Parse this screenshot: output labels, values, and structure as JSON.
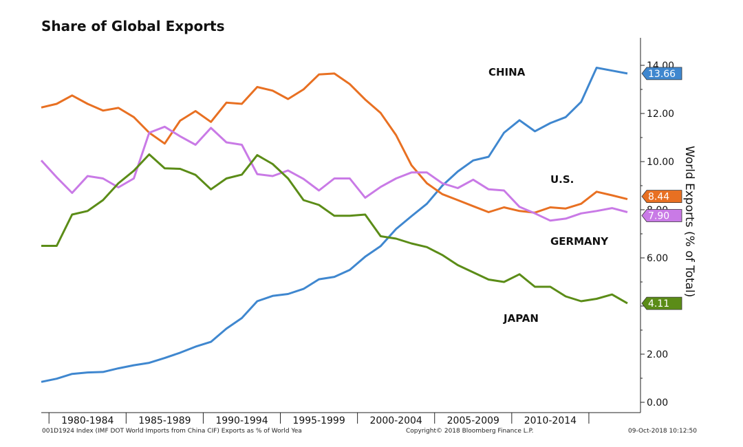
{
  "chart_data": {
    "type": "line",
    "title": "Share of Global Exports",
    "ylabel": "World Exports (% of Total)",
    "ylim": [
      0,
      15
    ],
    "yticks": [
      "0.00",
      "2.00",
      "4.00",
      "6.00",
      "8.00",
      "10.00",
      "12.00",
      "14.00"
    ],
    "ytick_values": [
      0,
      2,
      4,
      6,
      8,
      10,
      12,
      14
    ],
    "xlim": [
      1979,
      2018
    ],
    "x_category_labels": [
      "1980-1984",
      "1985-1989",
      "1990-1994",
      "1995-1999",
      "2000-2004",
      "2005-2009",
      "2010-2014"
    ],
    "x": [
      1979,
      1980,
      1981,
      1982,
      1983,
      1984,
      1985,
      1986,
      1987,
      1988,
      1989,
      1990,
      1991,
      1992,
      1993,
      1994,
      1995,
      1996,
      1997,
      1998,
      1999,
      2000,
      2001,
      2002,
      2003,
      2004,
      2005,
      2006,
      2007,
      2008,
      2009,
      2010,
      2011,
      2012,
      2013,
      2014,
      2015,
      2016,
      2017
    ],
    "series": [
      {
        "name": "CHINA",
        "color": "#3f87cf",
        "last_value_label": "13.66",
        "values": [
          0.85,
          0.98,
          1.18,
          1.24,
          1.26,
          1.41,
          1.54,
          1.64,
          1.84,
          2.06,
          2.31,
          2.51,
          3.06,
          3.5,
          4.2,
          4.42,
          4.5,
          4.71,
          5.11,
          5.21,
          5.5,
          6.05,
          6.49,
          7.2,
          7.73,
          8.25,
          9.0,
          9.59,
          10.05,
          10.2,
          11.2,
          11.72,
          11.26,
          11.6,
          11.85,
          12.48,
          13.9,
          13.78,
          13.66
        ]
      },
      {
        "name": "U.S.",
        "color": "#e87022",
        "last_value_label": "8.44",
        "values": [
          12.25,
          12.4,
          12.75,
          12.4,
          12.12,
          12.23,
          11.85,
          11.2,
          10.75,
          11.7,
          12.1,
          11.65,
          12.45,
          12.4,
          13.1,
          12.95,
          12.6,
          13.0,
          13.62,
          13.66,
          13.22,
          12.58,
          12.02,
          11.1,
          9.85,
          9.1,
          8.65,
          8.4,
          8.15,
          7.9,
          8.1,
          7.95,
          7.88,
          8.1,
          8.05,
          8.25,
          8.75,
          8.6,
          8.44
        ]
      },
      {
        "name": "GERMANY",
        "color": "#c97ae6",
        "last_value_label": "7.90",
        "values": [
          10.05,
          9.35,
          8.7,
          9.4,
          9.3,
          8.93,
          9.3,
          11.2,
          11.45,
          11.05,
          10.7,
          11.4,
          10.8,
          10.7,
          9.48,
          9.4,
          9.63,
          9.28,
          8.8,
          9.3,
          9.3,
          8.5,
          8.95,
          9.3,
          9.55,
          9.55,
          9.1,
          8.9,
          9.25,
          8.85,
          8.8,
          8.12,
          7.85,
          7.55,
          7.63,
          7.85,
          7.95,
          8.07,
          7.9
        ]
      },
      {
        "name": "JAPAN",
        "color": "#5b8c17",
        "last_value_label": "4.11",
        "values": [
          6.5,
          6.5,
          7.8,
          7.95,
          8.4,
          9.1,
          9.62,
          10.3,
          9.72,
          9.7,
          9.45,
          8.85,
          9.3,
          9.46,
          10.27,
          9.9,
          9.3,
          8.4,
          8.2,
          7.75,
          7.75,
          7.8,
          6.9,
          6.8,
          6.6,
          6.45,
          6.12,
          5.7,
          5.4,
          5.1,
          5.0,
          5.32,
          4.8,
          4.8,
          4.4,
          4.2,
          4.3,
          4.48,
          4.11
        ]
      }
    ],
    "annotations": [
      "CHINA",
      "U.S.",
      "GERMANY",
      "JAPAN"
    ]
  },
  "footer": {
    "left": "001D1924 Index (IMF DOT World Imports from China CIF) Exports as % of World  Yea",
    "center": "Copyright© 2018 Bloomberg Finance L.P.",
    "right": "09-Oct-2018 10:12:50"
  }
}
